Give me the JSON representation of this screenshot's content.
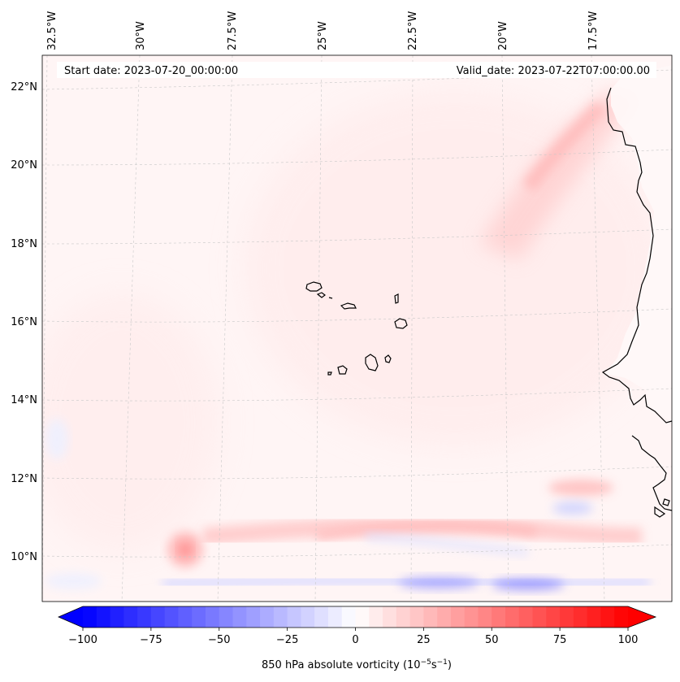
{
  "header": {
    "start_date": "Start date: 2023-07-20_00:00:00",
    "valid_date": "Valid_date: 2023-07-22T07:00:00.00"
  },
  "map": {
    "region": "Eastern tropical Atlantic off West Africa",
    "longitude_labels": [
      "32.5°W",
      "30°W",
      "27.5°W",
      "25°W",
      "22.5°W",
      "20°W",
      "17.5°W"
    ],
    "latitude_labels": [
      "22°N",
      "20°N",
      "18°N",
      "16°N",
      "14°N",
      "12°N",
      "10°N"
    ],
    "colors": {
      "coastline": "#000000",
      "gridline": "#c8c8c8",
      "background": "#ffffff"
    }
  },
  "colorbar": {
    "label_text": "850 hPa absolute vorticity (10",
    "label_exp1": "−5",
    "label_mid": "s",
    "label_exp2": "−1",
    "label_end": ")",
    "min": -100,
    "max": 100,
    "levels": 40,
    "ticks": [
      "−100",
      "−75",
      "−50",
      "−25",
      "0",
      "25",
      "50",
      "75",
      "100"
    ],
    "cmap": "bwr",
    "colors": {
      "negative": "#0000ff",
      "zero": "#ffffff",
      "positive": "#ff0000"
    }
  }
}
